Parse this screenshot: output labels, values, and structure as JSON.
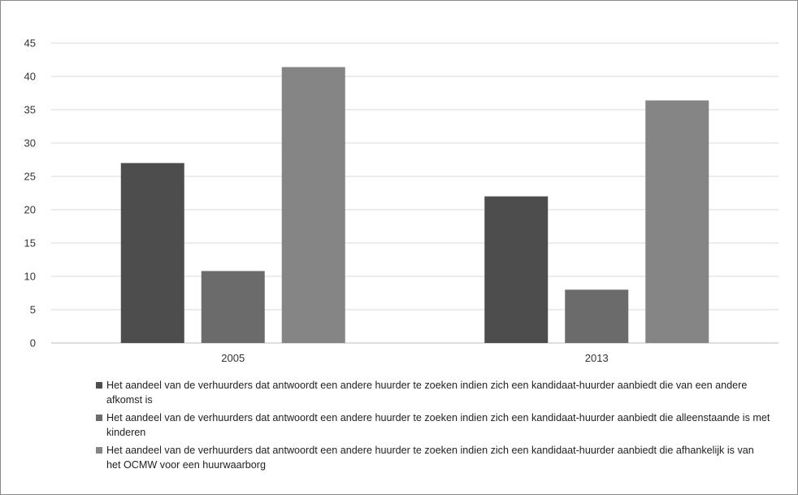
{
  "chart_data": {
    "type": "bar",
    "title": "",
    "xlabel": "",
    "ylabel": "",
    "ylim": [
      0,
      45
    ],
    "yticks": [
      0,
      5,
      10,
      15,
      20,
      25,
      30,
      35,
      40,
      45
    ],
    "grid": true,
    "legend_position": "bottom",
    "categories": [
      "2005",
      "2013"
    ],
    "series": [
      {
        "name": "Het aandeel van de verhuurders dat antwoordt een andere huurder te zoeken indien zich een kandidaat-huurder aanbiedt die van een andere afkomst is",
        "values": [
          27,
          22
        ],
        "color": "#4d4d4d"
      },
      {
        "name": "Het aandeel van de verhuurders dat antwoordt een andere huurder te zoeken indien zich een kandidaat-huurder aanbiedt die alleenstaande is met kinderen",
        "values": [
          10.8,
          8
        ],
        "color": "#6b6b6b"
      },
      {
        "name": "Het aandeel van de verhuurders dat antwoordt een andere huurder te zoeken indien zich een kandidaat-huurder aanbiedt die afhankelijk is van het OCMW voor een huurwaarborg",
        "values": [
          41.4,
          36.4
        ],
        "color": "#858585"
      }
    ]
  }
}
